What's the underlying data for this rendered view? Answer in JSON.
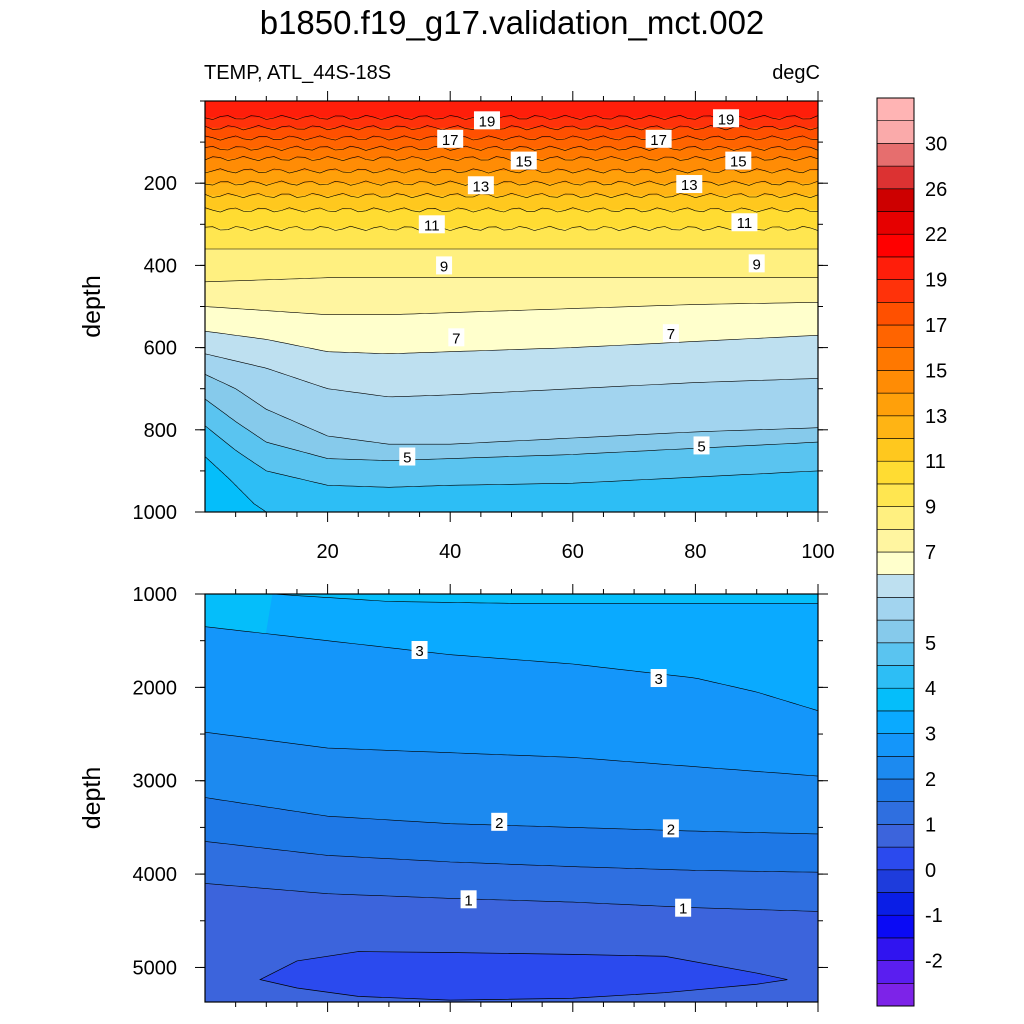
{
  "title": "b1850.f19_g17.validation_mct.002",
  "chart_data": [
    {
      "type": "contour",
      "panel": "upper",
      "left_label": "TEMP, ATL_44S-18S",
      "right_label": "degC",
      "ylabel": "depth",
      "xlabel": "",
      "x_ticks": [
        "20",
        "40",
        "60",
        "80",
        "100"
      ],
      "y_ticks": [
        "200",
        "400",
        "600",
        "800",
        "1000"
      ],
      "xlim": [
        0,
        100
      ],
      "ylim": [
        1000,
        0
      ],
      "y_reversed": true,
      "contour_lines": [
        {
          "level": 19,
          "x": [
            0,
            20,
            40,
            60,
            80,
            100
          ],
          "y": [
            40,
            40,
            40,
            40,
            40,
            40
          ]
        },
        {
          "level": 18,
          "x": [
            0,
            20,
            40,
            60,
            80,
            100
          ],
          "y": [
            65,
            65,
            65,
            65,
            65,
            65
          ]
        },
        {
          "level": 17,
          "x": [
            0,
            20,
            40,
            60,
            80,
            100
          ],
          "y": [
            90,
            90,
            90,
            90,
            90,
            90
          ]
        },
        {
          "level": 16,
          "x": [
            0,
            20,
            40,
            60,
            80,
            100
          ],
          "y": [
            115,
            115,
            115,
            115,
            115,
            115
          ]
        },
        {
          "level": 15,
          "x": [
            0,
            20,
            40,
            60,
            80,
            100
          ],
          "y": [
            140,
            140,
            140,
            140,
            140,
            140
          ]
        },
        {
          "level": 14,
          "x": [
            0,
            20,
            40,
            60,
            80,
            100
          ],
          "y": [
            170,
            170,
            170,
            170,
            170,
            170
          ]
        },
        {
          "level": 13,
          "x": [
            0,
            20,
            40,
            60,
            80,
            100
          ],
          "y": [
            200,
            200,
            200,
            200,
            200,
            200
          ]
        },
        {
          "level": 12,
          "x": [
            0,
            20,
            40,
            60,
            80,
            100
          ],
          "y": [
            230,
            230,
            230,
            230,
            230,
            230
          ]
        },
        {
          "level": 11,
          "x": [
            0,
            20,
            40,
            60,
            80,
            100
          ],
          "y": [
            265,
            265,
            265,
            265,
            265,
            265
          ]
        },
        {
          "level": 10,
          "x": [
            0,
            20,
            40,
            60,
            80,
            100
          ],
          "y": [
            310,
            310,
            310,
            310,
            310,
            310
          ]
        },
        {
          "level": 9,
          "x": [
            0,
            20,
            40,
            60,
            80,
            100
          ],
          "y": [
            360,
            360,
            360,
            360,
            360,
            360
          ]
        },
        {
          "level": 8,
          "x": [
            0,
            20,
            40,
            60,
            80,
            100
          ],
          "y": [
            440,
            430,
            430,
            430,
            430,
            430
          ]
        },
        {
          "level": 7,
          "x": [
            0,
            10,
            20,
            30,
            40,
            60,
            80,
            100
          ],
          "y": [
            500,
            510,
            520,
            520,
            515,
            505,
            495,
            490
          ]
        },
        {
          "level": 6.5,
          "x": [
            0,
            10,
            20,
            30,
            40,
            60,
            80,
            100
          ],
          "y": [
            560,
            580,
            610,
            615,
            610,
            600,
            585,
            570
          ]
        },
        {
          "level": 6,
          "x": [
            0,
            10,
            20,
            30,
            40,
            60,
            80,
            100
          ],
          "y": [
            615,
            650,
            700,
            720,
            715,
            700,
            685,
            675
          ]
        },
        {
          "level": 5.5,
          "x": [
            0,
            5,
            10,
            20,
            30,
            40,
            60,
            80,
            100
          ],
          "y": [
            665,
            700,
            750,
            815,
            835,
            835,
            820,
            805,
            795
          ]
        },
        {
          "level": 5,
          "x": [
            0,
            5,
            10,
            20,
            30,
            40,
            60,
            80,
            100
          ],
          "y": [
            725,
            780,
            830,
            870,
            875,
            870,
            860,
            845,
            830
          ]
        },
        {
          "level": 4.5,
          "x": [
            0,
            5,
            10,
            20,
            30,
            40,
            60,
            80,
            100
          ],
          "y": [
            790,
            850,
            900,
            935,
            940,
            935,
            930,
            915,
            900
          ]
        },
        {
          "level": 4,
          "x": [
            0,
            4,
            8,
            10
          ],
          "y": [
            865,
            920,
            980,
            1000
          ]
        }
      ],
      "contour_labels": [
        {
          "text": "19",
          "x": 46,
          "y": 47
        },
        {
          "text": "19",
          "x": 85,
          "y": 42
        },
        {
          "text": "17",
          "x": 40,
          "y": 92
        },
        {
          "text": "17",
          "x": 74,
          "y": 92
        },
        {
          "text": "15",
          "x": 52,
          "y": 145
        },
        {
          "text": "15",
          "x": 87,
          "y": 145
        },
        {
          "text": "13",
          "x": 45,
          "y": 205
        },
        {
          "text": "13",
          "x": 79,
          "y": 202
        },
        {
          "text": "11",
          "x": 37,
          "y": 300
        },
        {
          "text": "11",
          "x": 88,
          "y": 295
        },
        {
          "text": "9",
          "x": 39,
          "y": 400
        },
        {
          "text": "9",
          "x": 90,
          "y": 395
        },
        {
          "text": "7",
          "x": 41,
          "y": 575
        },
        {
          "text": "7",
          "x": 76,
          "y": 565
        },
        {
          "text": "5",
          "x": 33,
          "y": 865
        },
        {
          "text": "5",
          "x": 81,
          "y": 838
        }
      ]
    },
    {
      "type": "contour",
      "panel": "lower",
      "ylabel": "depth",
      "xlabel": "",
      "x_ticks": [],
      "y_ticks": [
        "1000",
        "2000",
        "3000",
        "4000",
        "5000"
      ],
      "xlim": [
        0,
        100
      ],
      "ylim": [
        5370,
        1000
      ],
      "y_reversed": true,
      "contour_lines": [
        {
          "level": 3.5,
          "x": [
            11,
            30,
            50,
            70,
            90,
            100
          ],
          "y": [
            1000,
            1080,
            1100,
            1100,
            1100,
            1100
          ]
        },
        {
          "level": 3,
          "x": [
            0,
            20,
            40,
            60,
            80,
            90,
            100
          ],
          "y": [
            1350,
            1500,
            1650,
            1750,
            1900,
            2050,
            2250
          ]
        },
        {
          "level": 2.5,
          "x": [
            0,
            20,
            40,
            60,
            80,
            100
          ],
          "y": [
            2480,
            2650,
            2700,
            2750,
            2850,
            2950
          ]
        },
        {
          "level": 2,
          "x": [
            0,
            20,
            40,
            60,
            80,
            100
          ],
          "y": [
            3180,
            3380,
            3460,
            3500,
            3540,
            3570
          ]
        },
        {
          "level": 1.5,
          "x": [
            0,
            20,
            40,
            60,
            80,
            100
          ],
          "y": [
            3650,
            3800,
            3870,
            3920,
            3960,
            3980
          ]
        },
        {
          "level": 1,
          "x": [
            0,
            20,
            40,
            60,
            80,
            100
          ],
          "y": [
            4100,
            4210,
            4260,
            4300,
            4360,
            4400
          ]
        },
        {
          "level": 0.5,
          "x": [
            9,
            15,
            25,
            40,
            60,
            75,
            90,
            95,
            90,
            75,
            60,
            40,
            25,
            15,
            9
          ],
          "y": [
            5130,
            4930,
            4830,
            4840,
            4860,
            4880,
            5060,
            5130,
            5180,
            5270,
            5330,
            5350,
            5310,
            5220,
            5130
          ],
          "closed": true
        }
      ],
      "contour_labels": [
        {
          "text": "3",
          "x": 35,
          "y": 1600
        },
        {
          "text": "3",
          "x": 74,
          "y": 1900
        },
        {
          "text": "2",
          "x": 48,
          "y": 3440
        },
        {
          "text": "2",
          "x": 76,
          "y": 3510
        },
        {
          "text": "1",
          "x": 43,
          "y": 4270
        },
        {
          "text": "1",
          "x": 78,
          "y": 4360
        }
      ]
    }
  ],
  "colorbar": {
    "labels": [
      "30",
      "26",
      "22",
      "19",
      "17",
      "15",
      "13",
      "11",
      "9",
      "7",
      "5",
      "4",
      "3",
      "2",
      "1",
      "0",
      "-1",
      "-2"
    ],
    "levels": [
      -2.5,
      -2,
      -1.5,
      -1,
      -0.5,
      0,
      0.5,
      1,
      1.5,
      2,
      2.5,
      3,
      3.5,
      4,
      4.5,
      5,
      5.5,
      6,
      6.5,
      7,
      8,
      9,
      10,
      11,
      12,
      13,
      14,
      15,
      16,
      17,
      18,
      19,
      20,
      22,
      24,
      26,
      28,
      30,
      32
    ],
    "colors": [
      "#7d23e8",
      "#5a1ef0",
      "#3014f0",
      "#0a0af5",
      "#0a1ee6",
      "#1e3cdc",
      "#2b4aee",
      "#3c64dc",
      "#2f6fe0",
      "#1e78e6",
      "#1c8af0",
      "#1496fa",
      "#0aaaff",
      "#05befa",
      "#2dbef5",
      "#5ac4f0",
      "#86caeb",
      "#a2d4ef",
      "#bee0f0",
      "#ffffcc",
      "#fff5a0",
      "#fff080",
      "#ffe650",
      "#ffdc32",
      "#ffc81e",
      "#ffb414",
      "#ffa00a",
      "#ff8c05",
      "#ff7800",
      "#ff6400",
      "#ff5000",
      "#ff320a",
      "#ff1e0a",
      "#ff0000",
      "#e60000",
      "#cd0000",
      "#dc3232",
      "#e66e6e",
      "#faaaaa",
      "#ffb4b4"
    ]
  }
}
